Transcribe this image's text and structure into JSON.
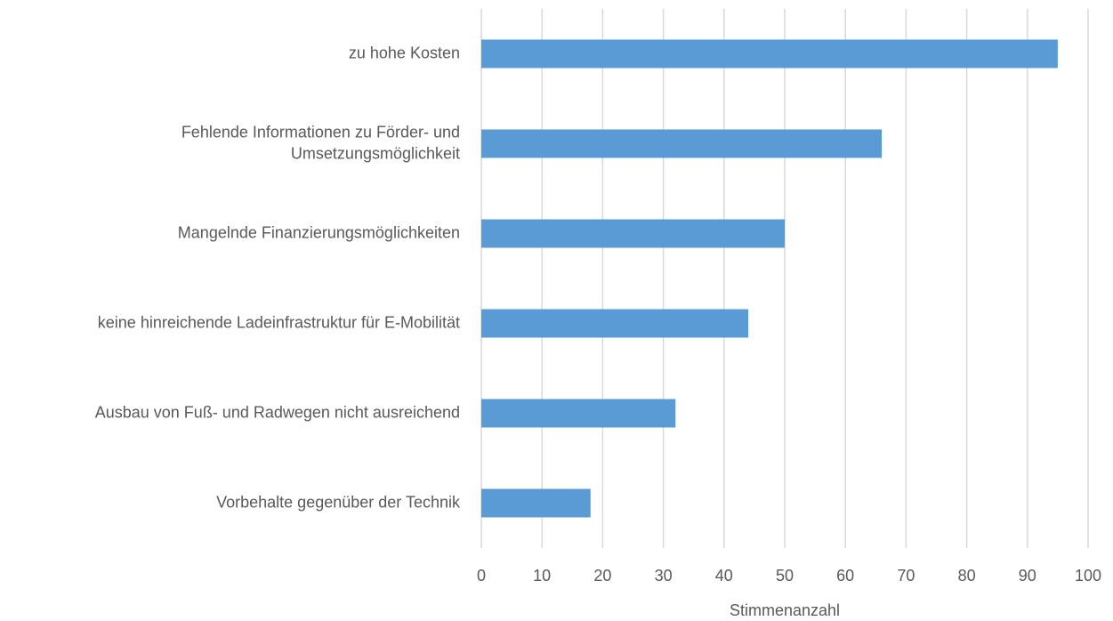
{
  "chart_data": {
    "type": "hbar",
    "categories": [
      "zu hohe Kosten",
      "Fehlende Informationen zu Förder- und\nUmsetzungsmöglichkeit",
      "Mangelnde Finanzierungsmöglichkeiten",
      "keine hinreichende Ladeinfrastruktur für E-Mobilität",
      "Ausbau von Fuß- und Radwegen nicht ausreichend",
      "Vorbehalte gegenüber der Technik"
    ],
    "values": [
      95,
      66,
      50,
      44,
      32,
      18
    ],
    "color": "#5b9bd5",
    "xlabel": "Stimmenanzahl",
    "xlim": [
      0,
      100
    ],
    "xticks": [
      0,
      10,
      20,
      30,
      40,
      50,
      60,
      70,
      80,
      90,
      100
    ],
    "grid": true
  }
}
